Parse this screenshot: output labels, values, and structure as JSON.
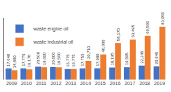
{
  "chart_data": {
    "type": "bar",
    "categories": [
      "2009",
      "2010",
      "2011",
      "2012",
      "2013",
      "2014",
      "2015",
      "2016",
      "2017",
      "2018",
      "2019"
    ],
    "series": [
      {
        "name": "waste engine oil",
        "color": "#4472c4",
        "values": [
          17640,
          17775,
          20500,
          20000,
          16775,
          17755,
          17900,
          19195,
          19595,
          22245,
          20945
        ],
        "value_labels": [
          "17,640",
          "17,775",
          "20,500",
          "20,000",
          "16,775",
          "17,755",
          "17,900",
          "19,195",
          "19,595",
          "22,245",
          "20,945"
        ]
      },
      {
        "name": "waste industrial oil",
        "color": "#ed7d31",
        "values": [
          14880,
          16178,
          19600,
          19500,
          16775,
          29710,
          40000,
          58170,
          63495,
          69596,
          83955
        ],
        "value_labels": [
          "14,880",
          "16,178",
          "19,600",
          "19,500",
          "16,775",
          "29,710",
          "40,000",
          "58,170",
          "63,495",
          "69,596",
          "83,955"
        ]
      }
    ],
    "ylim": [
      0,
      98000
    ],
    "grid": false,
    "legend": "upper left",
    "data_labels": true,
    "tick_labels": "x"
  }
}
